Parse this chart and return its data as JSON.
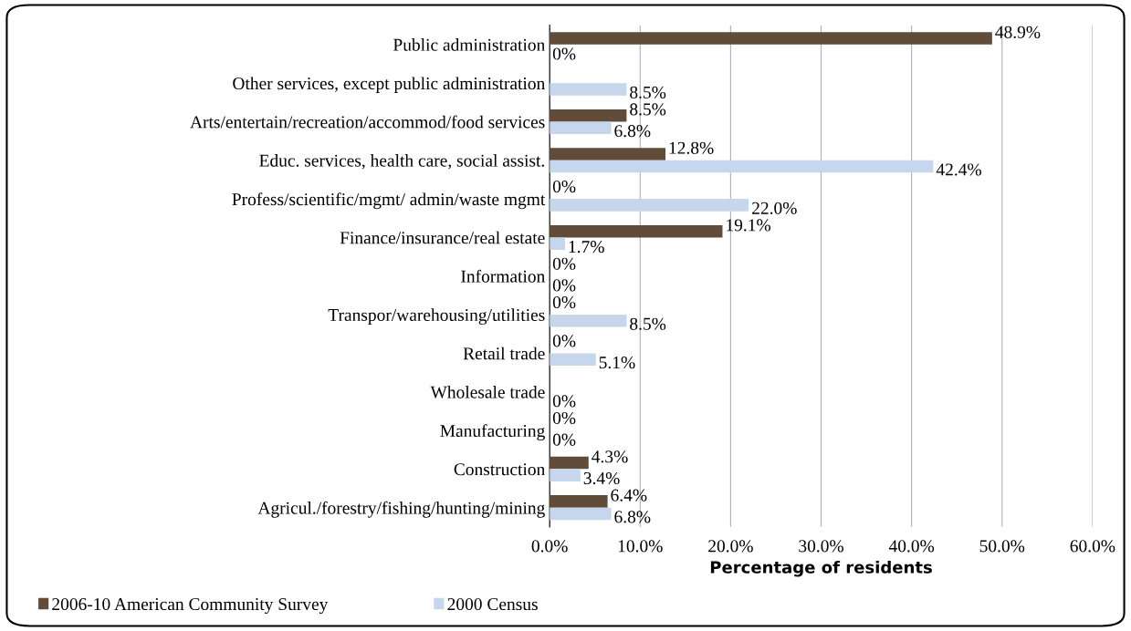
{
  "chart_data": {
    "type": "bar",
    "orientation": "horizontal",
    "xlabel": "Percentage of residents",
    "categories": [
      "Public administration",
      "Other services, except public administration",
      "Arts/entertain/recreation/accommod/food services",
      "Educ. services, health care, social assist.",
      "Profess/scientific/mgmt/ admin/waste mgmt",
      "Finance/insurance/real estate",
      "Information",
      "Transpor/warehousing/utilities",
      "Retail trade",
      "Wholesale trade",
      "Manufacturing",
      "Construction",
      "Agricul./forestry/fishing/hunting/mining"
    ],
    "series": [
      {
        "name": "2006-10 American Community Survey",
        "color": "#604c38",
        "values": [
          48.9,
          0,
          8.5,
          12.8,
          0,
          19.1,
          0,
          0,
          0,
          0,
          0,
          4.3,
          6.4
        ],
        "value_labels": [
          "48.9%",
          null,
          "8.5%",
          "12.8%",
          "0%",
          "19.1%",
          "0%",
          "0%",
          "0%",
          null,
          "0%",
          "4.3%",
          "6.4%"
        ]
      },
      {
        "name": "2000 Census",
        "color": "#c6d6ec",
        "values": [
          0,
          8.5,
          6.8,
          42.4,
          22.0,
          1.7,
          0,
          8.5,
          5.1,
          0,
          0,
          3.4,
          6.8
        ],
        "value_labels": [
          "0%",
          "8.5%",
          "6.8%",
          "42.4%",
          "22.0%",
          "1.7%",
          "0%",
          "8.5%",
          "5.1%",
          "0%",
          "0%",
          "3.4%",
          "6.8%"
        ]
      }
    ],
    "xlim": [
      0,
      60
    ],
    "xticks": [
      {
        "value": 0,
        "label": "0.0%"
      },
      {
        "value": 10,
        "label": "10.0%"
      },
      {
        "value": 20,
        "label": "20.0%"
      },
      {
        "value": 30,
        "label": "30.0%"
      },
      {
        "value": 40,
        "label": "40.0%"
      },
      {
        "value": 50,
        "label": "50.0%"
      },
      {
        "value": 60,
        "label": "60.0%"
      }
    ],
    "grid": "x",
    "legend": "bottom left"
  }
}
